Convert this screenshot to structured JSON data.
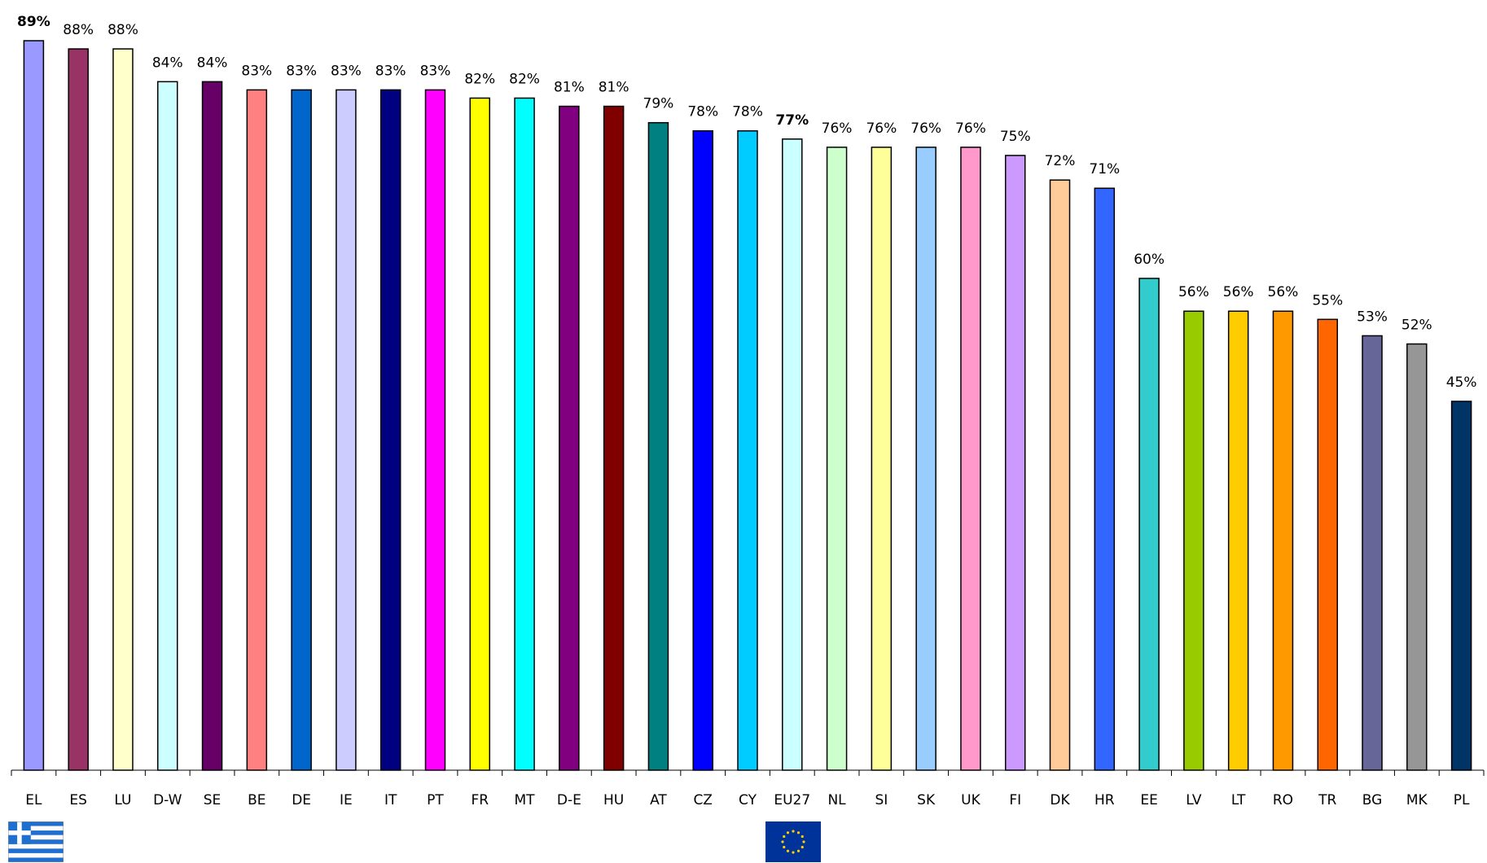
{
  "chart_data": {
    "type": "bar",
    "title": "",
    "xlabel": "",
    "ylabel": "",
    "ylim": [
      0,
      89
    ],
    "grid": false,
    "legend": "none",
    "categories": [
      "EL",
      "ES",
      "LU",
      "D-W",
      "SE",
      "BE",
      "DE",
      "IE",
      "IT",
      "PT",
      "FR",
      "MT",
      "D-E",
      "HU",
      "AT",
      "CZ",
      "CY",
      "EU27",
      "NL",
      "SI",
      "SK",
      "UK",
      "FI",
      "DK",
      "HR",
      "EE",
      "LV",
      "LT",
      "RO",
      "TR",
      "BG",
      "MK",
      "PL"
    ],
    "values": [
      89,
      88,
      88,
      84,
      84,
      83,
      83,
      83,
      83,
      83,
      82,
      82,
      81,
      81,
      79,
      78,
      78,
      77,
      76,
      76,
      76,
      76,
      75,
      72,
      71,
      60,
      56,
      56,
      56,
      55,
      53,
      52,
      45
    ],
    "labels": [
      "89%",
      "88%",
      "88%",
      "84%",
      "84%",
      "83%",
      "83%",
      "83%",
      "83%",
      "83%",
      "82%",
      "82%",
      "81%",
      "81%",
      "79%",
      "78%",
      "78%",
      "77%",
      "76%",
      "76%",
      "76%",
      "76%",
      "75%",
      "72%",
      "71%",
      "60%",
      "56%",
      "56%",
      "56%",
      "55%",
      "53%",
      "52%",
      "45%"
    ],
    "bold_labels": [
      "EL",
      "EU27"
    ],
    "colors": [
      "#9999ff",
      "#993366",
      "#ffffcc",
      "#ccffff",
      "#660066",
      "#ff8080",
      "#0066cc",
      "#ccccff",
      "#000080",
      "#ff00ff",
      "#ffff00",
      "#00ffff",
      "#800080",
      "#800000",
      "#008080",
      "#0000ff",
      "#00ccff",
      "#ccffff",
      "#ccffcc",
      "#ffff99",
      "#99ccff",
      "#ff99cc",
      "#cc99ff",
      "#ffcc99",
      "#3366ff",
      "#33cccc",
      "#99cc00",
      "#ffcc00",
      "#ff9900",
      "#ff6600",
      "#666699",
      "#969696",
      "#003366"
    ]
  },
  "flags": {
    "left": {
      "icon": "greek-flag-icon"
    },
    "center": {
      "icon": "eu-flag-icon"
    }
  }
}
